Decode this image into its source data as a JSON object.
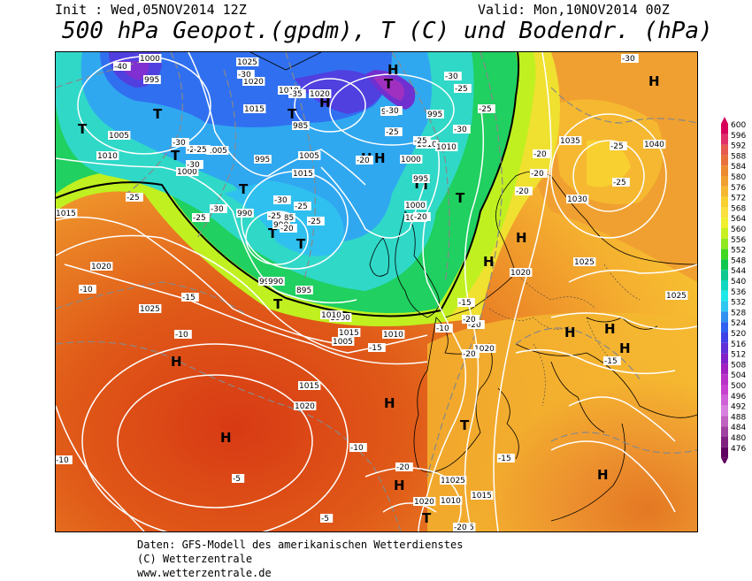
{
  "header": {
    "init": "Init : Wed,05NOV2014 12Z",
    "valid": "Valid: Mon,10NOV2014 00Z",
    "title": "500 hPa Geopot.(gpdm), T (C) und Bodendr. (hPa)"
  },
  "footer": {
    "line1": "Daten: GFS-Modell des amerikanischen Wetterdienstes",
    "line2": "(C) Wetterzentrale",
    "line3": "www.wetterzentrale.de"
  },
  "legend": {
    "values": [
      "600",
      "596",
      "592",
      "588",
      "584",
      "580",
      "576",
      "572",
      "568",
      "564",
      "560",
      "556",
      "552",
      "548",
      "544",
      "540",
      "536",
      "532",
      "528",
      "524",
      "520",
      "516",
      "512",
      "508",
      "504",
      "500",
      "496",
      "492",
      "488",
      "484",
      "480",
      "476"
    ],
    "colors": [
      "#d6005a",
      "#e0306a",
      "#e65a50",
      "#e8703a",
      "#ec8a30",
      "#f0a030",
      "#f5b830",
      "#f8d030",
      "#fae040",
      "#f0f030",
      "#c8f020",
      "#90e820",
      "#40d820",
      "#10c850",
      "#10c890",
      "#10d8c0",
      "#20e8e8",
      "#30c8f0",
      "#3090f0",
      "#3060f0",
      "#4040e8",
      "#6030d8",
      "#8020c8",
      "#a020c0",
      "#b830c8",
      "#c840d0",
      "#d060d8",
      "#d880e0",
      "#c060c0",
      "#a040a0",
      "#802080",
      "#600060"
    ]
  },
  "map": {
    "pressure_systems": [
      {
        "label": "T"
      },
      {
        "label": "T"
      },
      {
        "label": "T"
      },
      {
        "label": "T"
      },
      {
        "label": "T"
      },
      {
        "label": "T"
      },
      {
        "label": "T"
      },
      {
        "label": "T"
      },
      {
        "label": "H"
      },
      {
        "label": "H"
      },
      {
        "label": "H"
      },
      {
        "label": "H"
      },
      {
        "label": "H"
      },
      {
        "label": "H"
      },
      {
        "label": "H"
      },
      {
        "label": "T"
      },
      {
        "label": "T"
      },
      {
        "label": "T"
      },
      {
        "label": "T"
      },
      {
        "label": "H"
      },
      {
        "label": "H"
      },
      {
        "label": "H"
      },
      {
        "label": "H"
      },
      {
        "label": "H"
      },
      {
        "label": "H"
      },
      {
        "label": "H"
      },
      {
        "label": "T"
      },
      {
        "label": "H"
      },
      {
        "label": "T"
      }
    ],
    "pressure_labels": [
      "1000",
      "995",
      "1025",
      "1020",
      "1010",
      "1020",
      "1015",
      "985",
      "990",
      "995",
      "1005",
      "1010",
      "1000",
      "1005",
      "995",
      "1005",
      "1015",
      "1010",
      "1010",
      "1000",
      "995",
      "1000",
      "1005",
      "1015",
      "990",
      "985",
      "990",
      "995",
      "990",
      "895",
      "1020",
      "1025",
      "1035",
      "1040",
      "1030",
      "1025",
      "1020",
      "1025",
      "1000",
      "1005",
      "1010",
      "1015",
      "1020",
      "1020",
      "1010",
      "1025",
      "1010",
      "1020",
      "1015",
      "1005",
      "1010",
      "1015"
    ],
    "temp_labels": [
      "-40",
      "-30",
      "-35",
      "-30",
      "-30",
      "-25",
      "-25",
      "-25",
      "-25",
      "-30",
      "-30",
      "-25",
      "-25",
      "-20",
      "-25",
      "-25",
      "-30",
      "-25",
      "-30",
      "-30",
      "-25",
      "-20",
      "-20",
      "-20",
      "-25",
      "-30",
      "-25",
      "-25",
      "-20",
      "-20",
      "-20",
      "-20",
      "-15",
      "-10",
      "-10",
      "-15",
      "-10",
      "-5",
      "-10",
      "-5",
      "-15",
      "-20",
      "-15",
      "-20",
      "-20",
      "-20",
      "-15",
      "-10"
    ]
  }
}
